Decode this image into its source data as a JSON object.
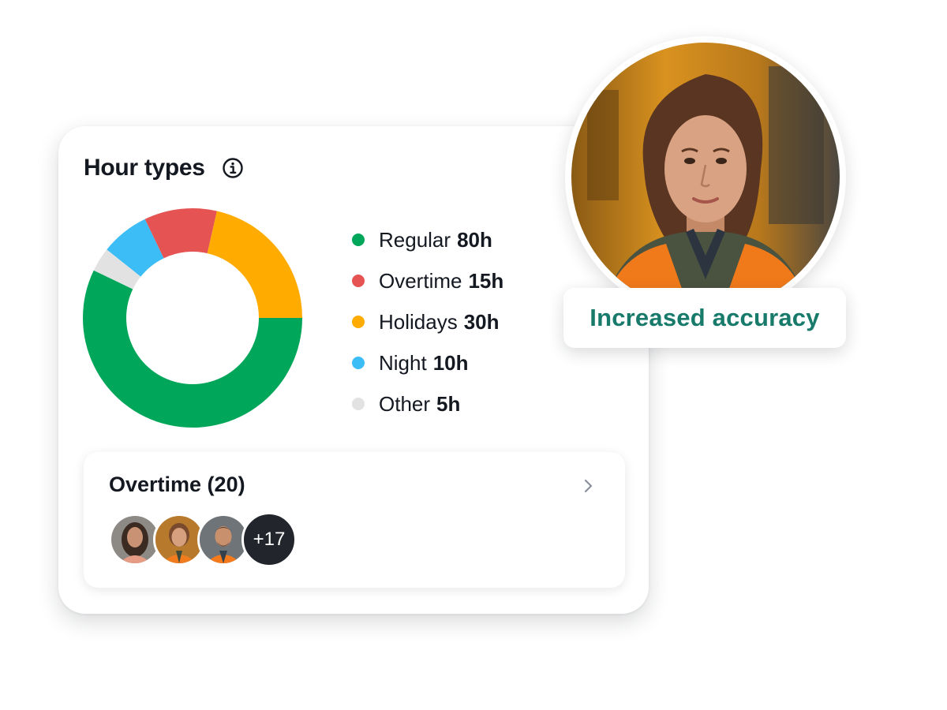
{
  "card": {
    "title": "Hour types",
    "info_icon": "info-icon"
  },
  "chart_data": {
    "type": "pie",
    "title": "Hour types",
    "unit": "h",
    "donut": true,
    "categories": [
      "Regular",
      "Overtime",
      "Holidays",
      "Night",
      "Other"
    ],
    "values": [
      80,
      15,
      30,
      10,
      5
    ],
    "colors": [
      "#00a65a",
      "#e55353",
      "#ffab00",
      "#3dbdf5",
      "#e2e2e2"
    ],
    "legend_placement": "right"
  },
  "legend": {
    "items": [
      {
        "label": "Regular",
        "value": "80h",
        "color": "#00a65a"
      },
      {
        "label": "Overtime",
        "value": "15h",
        "color": "#e55353"
      },
      {
        "label": "Holidays",
        "value": "30h",
        "color": "#ffab00"
      },
      {
        "label": "Night",
        "value": "10h",
        "color": "#3dbdf5"
      },
      {
        "label": "Other",
        "value": "5h",
        "color": "#e2e2e2"
      }
    ]
  },
  "overtime": {
    "title": "Overtime (20)",
    "chevron_icon": "chevron-right-icon",
    "more_count": "+17"
  },
  "badge": {
    "text": "Increased accuracy",
    "color": "#177a6a"
  }
}
